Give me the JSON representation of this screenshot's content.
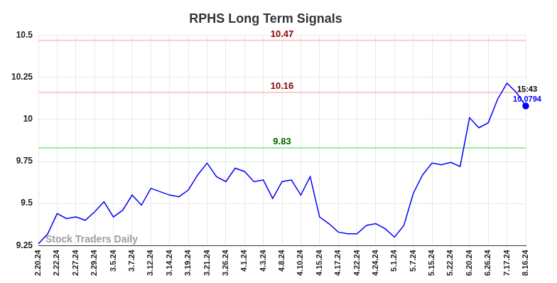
{
  "chart_data": {
    "type": "line",
    "title": "RPHS Long Term Signals",
    "categories": [
      "2.20.24",
      null,
      "2.22.24",
      null,
      "2.27.24",
      null,
      "2.29.24",
      null,
      "3.5.24",
      null,
      "3.7.24",
      null,
      "3.12.24",
      null,
      "3.14.24",
      null,
      "3.19.24",
      null,
      "3.21.24",
      null,
      "3.26.24",
      null,
      "4.1.24",
      null,
      "4.3.24",
      null,
      "4.8.24",
      null,
      "4.10.24",
      null,
      "4.15.24",
      null,
      "4.17.24",
      null,
      "4.22.24",
      null,
      "4.24.24",
      null,
      "5.1.24",
      null,
      "5.7.24",
      null,
      "5.15.24",
      null,
      "5.22.24",
      null,
      "6.20.24",
      null,
      "6.26.24",
      null,
      "7.17.24",
      null,
      "8.16.24"
    ],
    "values": [
      9.26,
      9.32,
      9.44,
      9.41,
      9.42,
      9.4,
      9.45,
      9.51,
      9.42,
      9.46,
      9.55,
      9.49,
      9.59,
      9.57,
      9.55,
      9.54,
      9.58,
      9.67,
      9.74,
      9.66,
      9.63,
      9.71,
      9.69,
      9.63,
      9.64,
      9.53,
      9.63,
      9.64,
      9.55,
      9.66,
      9.42,
      9.38,
      9.33,
      9.32,
      9.32,
      9.37,
      9.38,
      9.35,
      9.3,
      9.37,
      9.56,
      9.67,
      9.74,
      9.73,
      9.745,
      9.72,
      10.01,
      9.95,
      9.98,
      10.12,
      10.215,
      10.16,
      10.0794
    ],
    "color": "#0000ff",
    "ylim": [
      9.25,
      10.5
    ],
    "yticks": [
      9.25,
      9.5,
      9.75,
      10,
      10.25,
      10.5
    ],
    "grid": true,
    "reference_lines": [
      {
        "value": 10.47,
        "color": "#ffcccc",
        "label_color": "#8b0000"
      },
      {
        "value": 10.16,
        "color": "#ffcccc",
        "label_color": "#8b0000"
      },
      {
        "value": 9.83,
        "color": "#99ee99",
        "label_color": "#006400"
      }
    ],
    "annotations": [
      {
        "text": "15:43"
      }
    ],
    "watermark": "Stock Traders Daily"
  }
}
